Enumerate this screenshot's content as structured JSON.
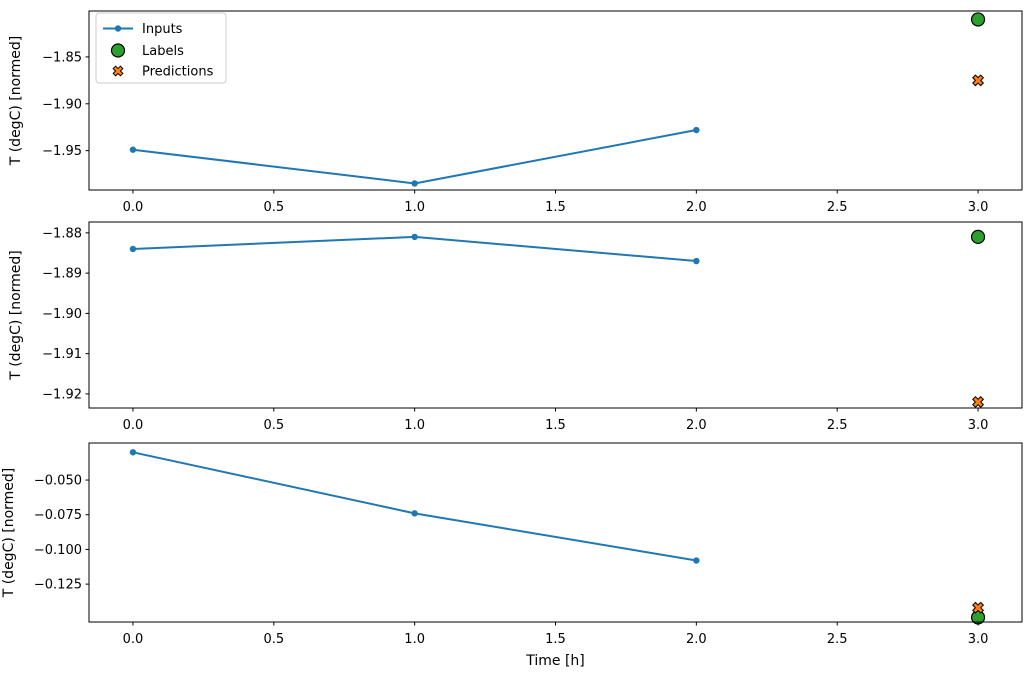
{
  "figure": {
    "background": "#ffffff",
    "xlabel": "Time [h]",
    "ylabel": "T (degC) [normed]"
  },
  "colors": {
    "inputs": "#1f77b4",
    "labels": "#2ca02c",
    "predictions": "#ff7f0e",
    "marker_edge": "#000000",
    "axis": "#000000",
    "text": "#000000",
    "legend_border": "#cccccc",
    "legend_bg": "#ffffff"
  },
  "legend": {
    "position": "upper left",
    "entries": [
      {
        "label": "Inputs",
        "marker": "line-dot",
        "color": "#1f77b4"
      },
      {
        "label": "Labels",
        "marker": "circle",
        "color": "#2ca02c"
      },
      {
        "label": "Predictions",
        "marker": "X",
        "color": "#ff7f0e"
      }
    ]
  },
  "chart_data": [
    {
      "type": "line",
      "position": "top",
      "title": "",
      "xlabel": "",
      "ylabel": "T (degC) [normed]",
      "xlim": [
        -0.156,
        3.156
      ],
      "ylim": [
        -1.992,
        -1.801
      ],
      "grid": false,
      "series": [
        {
          "name": "Inputs",
          "type": "line",
          "marker": "dot",
          "x": [
            0,
            1,
            2
          ],
          "y": [
            -1.949,
            -1.985,
            -1.928
          ]
        },
        {
          "name": "Labels",
          "type": "scatter",
          "marker": "circle",
          "x": [
            3
          ],
          "y": [
            -1.81
          ]
        },
        {
          "name": "Predictions",
          "type": "scatter",
          "marker": "X",
          "x": [
            3
          ],
          "y": [
            -1.875
          ]
        }
      ],
      "xticks": {
        "values": [
          0,
          0.5,
          1,
          1.5,
          2,
          2.5,
          3
        ],
        "labels": [
          "0.0",
          "0.5",
          "1.0",
          "1.5",
          "2.0",
          "2.5",
          "3.0"
        ]
      },
      "yticks": {
        "values": [
          -1.85,
          -1.9,
          -1.95
        ],
        "labels": [
          "−1.85",
          "−1.90",
          "−1.95"
        ]
      },
      "show_legend": true,
      "show_xlabel": false
    },
    {
      "type": "line",
      "position": "middle",
      "title": "",
      "xlabel": "",
      "ylabel": "T (degC) [normed]",
      "xlim": [
        -0.156,
        3.156
      ],
      "ylim": [
        -1.9235,
        -1.8773
      ],
      "grid": false,
      "series": [
        {
          "name": "Inputs",
          "type": "line",
          "marker": "dot",
          "x": [
            0,
            1,
            2
          ],
          "y": [
            -1.884,
            -1.881,
            -1.887
          ]
        },
        {
          "name": "Labels",
          "type": "scatter",
          "marker": "circle",
          "x": [
            3
          ],
          "y": [
            -1.881
          ]
        },
        {
          "name": "Predictions",
          "type": "scatter",
          "marker": "X",
          "x": [
            3
          ],
          "y": [
            -1.922
          ]
        }
      ],
      "xticks": {
        "values": [
          0,
          0.5,
          1,
          1.5,
          2,
          2.5,
          3
        ],
        "labels": [
          "0.0",
          "0.5",
          "1.0",
          "1.5",
          "2.0",
          "2.5",
          "3.0"
        ]
      },
      "yticks": {
        "values": [
          -1.88,
          -1.89,
          -1.9,
          -1.91,
          -1.92
        ],
        "labels": [
          "−1.88",
          "−1.89",
          "−1.90",
          "−1.91",
          "−1.92"
        ]
      },
      "show_legend": false,
      "show_xlabel": false
    },
    {
      "type": "line",
      "position": "bottom",
      "title": "",
      "xlabel": "Time [h]",
      "ylabel": "T (degC) [normed]",
      "xlim": [
        -0.156,
        3.156
      ],
      "ylim": [
        -0.1523,
        -0.0233
      ],
      "grid": false,
      "series": [
        {
          "name": "Inputs",
          "type": "line",
          "marker": "dot",
          "x": [
            0,
            1,
            2
          ],
          "y": [
            -0.03,
            -0.074,
            -0.108
          ]
        },
        {
          "name": "Labels",
          "type": "scatter",
          "marker": "circle",
          "x": [
            3
          ],
          "y": [
            -0.149
          ]
        },
        {
          "name": "Predictions",
          "type": "scatter",
          "marker": "X",
          "x": [
            3
          ],
          "y": [
            -0.142
          ]
        }
      ],
      "xticks": {
        "values": [
          0,
          0.5,
          1,
          1.5,
          2,
          2.5,
          3
        ],
        "labels": [
          "0.0",
          "0.5",
          "1.0",
          "1.5",
          "2.0",
          "2.5",
          "3.0"
        ]
      },
      "yticks": {
        "values": [
          -0.05,
          -0.075,
          -0.1,
          -0.125
        ],
        "labels": [
          "−0.050",
          "−0.075",
          "−0.100",
          "−0.125"
        ]
      },
      "show_legend": false,
      "show_xlabel": true
    }
  ]
}
